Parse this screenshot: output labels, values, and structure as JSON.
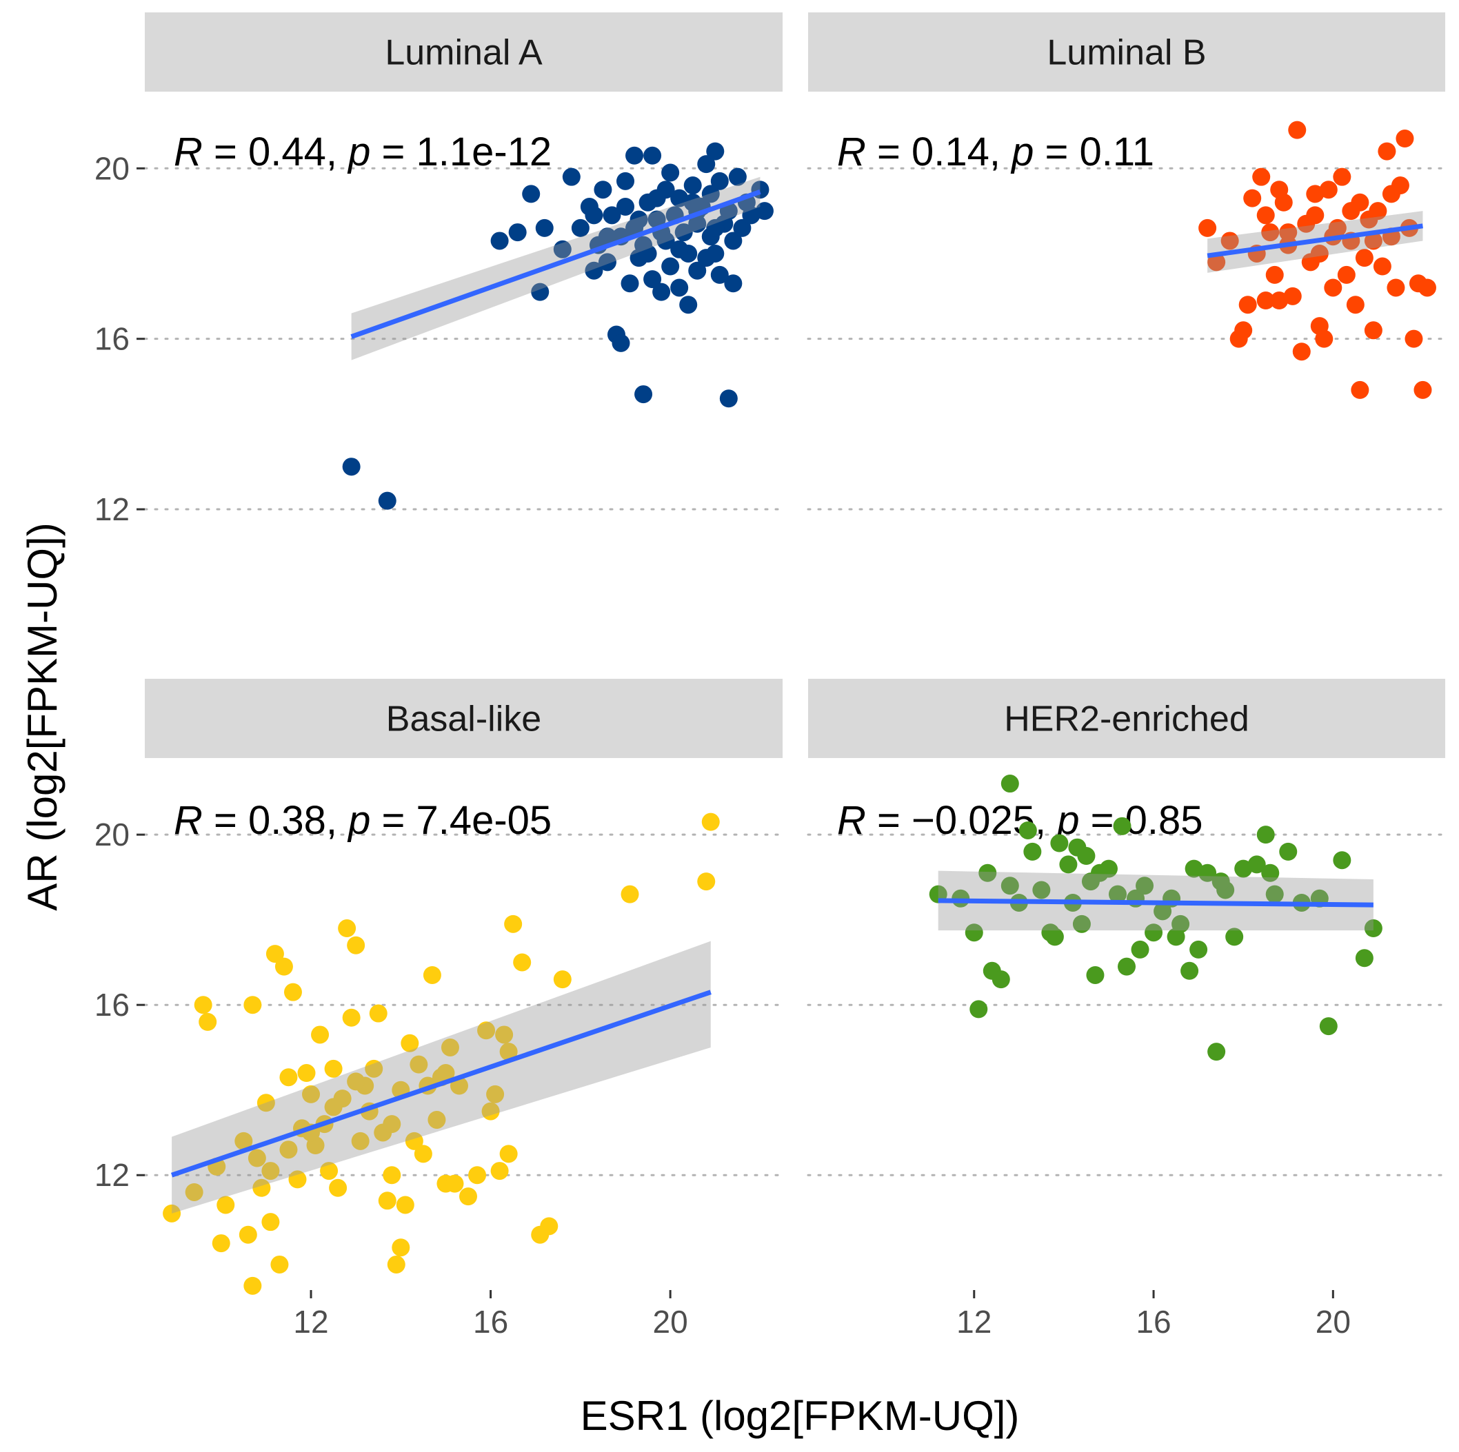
{
  "chart_data": {
    "type": "scatter",
    "xlabel": "ESR1 (log2[FPKM-UQ])",
    "ylabel": "AR (log2[FPKM-UQ])",
    "x_ticks": [
      12,
      16,
      20
    ],
    "y_ticks": [
      12,
      16,
      20
    ],
    "xlim": [
      8.3,
      22.5
    ],
    "ylim": [
      9.3,
      21.8
    ],
    "grid": "horizontal dotted",
    "fit_color": "#3366ff",
    "band_color": "#999999",
    "panels": [
      {
        "name": "Luminal A",
        "stat": {
          "r_symbol": "R",
          "r_text": " = 0.44, ",
          "p_symbol": "p",
          "p_text": " = 1.1e-12"
        },
        "color": "#003f87",
        "fit": {
          "x0": 12.9,
          "y0": 16.05,
          "x1": 22.0,
          "y1": 19.45
        },
        "band": {
          "lo0": 15.5,
          "hi0": 16.6,
          "lo1": 19.1,
          "hi1": 19.8
        },
        "points": [
          [
            12.9,
            13.0
          ],
          [
            13.7,
            12.2
          ],
          [
            16.2,
            18.3
          ],
          [
            16.6,
            18.5
          ],
          [
            16.9,
            19.4
          ],
          [
            17.1,
            17.1
          ],
          [
            17.2,
            18.6
          ],
          [
            17.6,
            18.1
          ],
          [
            17.8,
            19.8
          ],
          [
            18.0,
            18.6
          ],
          [
            18.2,
            19.1
          ],
          [
            18.3,
            17.6
          ],
          [
            18.4,
            18.2
          ],
          [
            18.5,
            19.5
          ],
          [
            18.6,
            17.8
          ],
          [
            18.7,
            18.9
          ],
          [
            18.8,
            16.1
          ],
          [
            18.9,
            15.9
          ],
          [
            18.9,
            18.4
          ],
          [
            19.0,
            19.7
          ],
          [
            19.1,
            17.3
          ],
          [
            19.2,
            18.6
          ],
          [
            19.2,
            20.3
          ],
          [
            19.3,
            17.9
          ],
          [
            19.4,
            14.7
          ],
          [
            19.4,
            18.2
          ],
          [
            19.5,
            19.2
          ],
          [
            19.6,
            20.3
          ],
          [
            19.6,
            17.4
          ],
          [
            19.7,
            18.8
          ],
          [
            19.8,
            17.1
          ],
          [
            19.9,
            19.5
          ],
          [
            19.9,
            18.3
          ],
          [
            20.0,
            17.7
          ],
          [
            20.0,
            19.9
          ],
          [
            20.1,
            18.9
          ],
          [
            20.2,
            17.2
          ],
          [
            20.2,
            19.3
          ],
          [
            20.3,
            18.5
          ],
          [
            20.4,
            16.8
          ],
          [
            20.4,
            18.0
          ],
          [
            20.5,
            19.6
          ],
          [
            20.6,
            17.6
          ],
          [
            20.6,
            18.7
          ],
          [
            20.7,
            19.1
          ],
          [
            20.8,
            17.9
          ],
          [
            20.8,
            20.1
          ],
          [
            20.9,
            18.4
          ],
          [
            20.9,
            19.4
          ],
          [
            21.0,
            18.0
          ],
          [
            21.0,
            20.4
          ],
          [
            21.1,
            17.5
          ],
          [
            21.1,
            19.7
          ],
          [
            21.2,
            18.7
          ],
          [
            21.3,
            14.6
          ],
          [
            21.3,
            19.0
          ],
          [
            21.4,
            17.3
          ],
          [
            21.4,
            18.3
          ],
          [
            21.5,
            19.8
          ],
          [
            21.6,
            18.6
          ],
          [
            21.7,
            19.2
          ],
          [
            21.8,
            18.9
          ],
          [
            22.0,
            19.5
          ],
          [
            22.1,
            19.0
          ],
          [
            19.0,
            19.1
          ],
          [
            19.5,
            18.0
          ],
          [
            18.6,
            18.4
          ],
          [
            20.6,
            19.0
          ],
          [
            21.0,
            18.6
          ],
          [
            19.8,
            18.5
          ],
          [
            20.2,
            18.1
          ],
          [
            19.3,
            18.8
          ],
          [
            20.5,
            19.2
          ],
          [
            18.3,
            18.9
          ],
          [
            19.7,
            19.3
          ]
        ]
      },
      {
        "name": "Luminal B",
        "stat": {
          "r_symbol": "R",
          "r_text": " = 0.14, ",
          "p_symbol": "p",
          "p_text": " = 0.11"
        },
        "color": "#ff4500",
        "fit": {
          "x0": 17.2,
          "y0": 17.95,
          "x1": 22.0,
          "y1": 18.65
        },
        "band": {
          "lo0": 17.55,
          "hi0": 18.35,
          "lo1": 18.3,
          "hi1": 19.0
        },
        "points": [
          [
            17.2,
            18.6
          ],
          [
            17.4,
            17.8
          ],
          [
            17.7,
            18.3
          ],
          [
            17.9,
            16.0
          ],
          [
            18.0,
            16.2
          ],
          [
            18.1,
            16.8
          ],
          [
            18.2,
            19.3
          ],
          [
            18.3,
            18.0
          ],
          [
            18.4,
            19.8
          ],
          [
            18.5,
            16.9
          ],
          [
            18.6,
            18.5
          ],
          [
            18.7,
            17.5
          ],
          [
            18.8,
            16.9
          ],
          [
            18.9,
            19.2
          ],
          [
            19.0,
            18.2
          ],
          [
            19.1,
            17.0
          ],
          [
            19.2,
            20.9
          ],
          [
            19.3,
            15.7
          ],
          [
            19.4,
            18.7
          ],
          [
            19.5,
            17.8
          ],
          [
            19.6,
            19.4
          ],
          [
            19.7,
            18.0
          ],
          [
            19.7,
            16.3
          ],
          [
            19.8,
            16.0
          ],
          [
            19.9,
            19.5
          ],
          [
            20.0,
            17.2
          ],
          [
            20.1,
            18.6
          ],
          [
            20.2,
            19.8
          ],
          [
            20.3,
            17.5
          ],
          [
            20.4,
            18.3
          ],
          [
            20.5,
            16.8
          ],
          [
            20.6,
            19.2
          ],
          [
            20.6,
            14.8
          ],
          [
            20.7,
            17.9
          ],
          [
            20.8,
            18.8
          ],
          [
            20.9,
            16.2
          ],
          [
            21.0,
            19.0
          ],
          [
            21.1,
            17.7
          ],
          [
            21.2,
            20.4
          ],
          [
            21.3,
            18.4
          ],
          [
            21.4,
            17.2
          ],
          [
            21.5,
            19.6
          ],
          [
            21.6,
            20.7
          ],
          [
            21.7,
            18.6
          ],
          [
            21.8,
            16.0
          ],
          [
            21.9,
            17.3
          ],
          [
            22.0,
            14.8
          ],
          [
            22.1,
            17.2
          ],
          [
            18.5,
            18.9
          ],
          [
            19.0,
            18.5
          ],
          [
            19.6,
            18.9
          ],
          [
            20.0,
            18.4
          ],
          [
            20.4,
            19.0
          ],
          [
            20.9,
            18.3
          ],
          [
            21.3,
            19.4
          ],
          [
            18.8,
            19.5
          ]
        ]
      },
      {
        "name": "Basal-like",
        "stat": {
          "r_symbol": "R",
          "r_text": " = 0.38, ",
          "p_symbol": "p",
          "p_text": " = 7.4e-05"
        },
        "color": "#ffcd0e",
        "fit": {
          "x0": 8.9,
          "y0": 12.0,
          "x1": 20.9,
          "y1": 16.3
        },
        "band": {
          "lo0": 11.1,
          "hi0": 12.9,
          "lo1": 15.0,
          "hi1": 17.5
        },
        "points": [
          [
            8.9,
            11.1
          ],
          [
            9.4,
            11.6
          ],
          [
            9.6,
            16.0
          ],
          [
            9.7,
            15.6
          ],
          [
            9.9,
            12.2
          ],
          [
            10.0,
            10.4
          ],
          [
            10.1,
            11.3
          ],
          [
            10.5,
            12.8
          ],
          [
            10.6,
            10.6
          ],
          [
            10.7,
            16.0
          ],
          [
            10.7,
            9.4
          ],
          [
            10.8,
            12.4
          ],
          [
            10.9,
            11.7
          ],
          [
            11.0,
            13.7
          ],
          [
            11.1,
            12.1
          ],
          [
            11.1,
            10.9
          ],
          [
            11.2,
            17.2
          ],
          [
            11.3,
            9.9
          ],
          [
            11.4,
            16.9
          ],
          [
            11.5,
            14.3
          ],
          [
            11.6,
            16.3
          ],
          [
            11.7,
            11.9
          ],
          [
            11.8,
            13.1
          ],
          [
            11.9,
            14.4
          ],
          [
            12.0,
            13.9
          ],
          [
            12.1,
            12.7
          ],
          [
            12.2,
            15.3
          ],
          [
            12.3,
            13.2
          ],
          [
            12.4,
            12.1
          ],
          [
            12.5,
            14.5
          ],
          [
            12.6,
            11.7
          ],
          [
            12.7,
            13.8
          ],
          [
            12.8,
            17.8
          ],
          [
            12.9,
            15.7
          ],
          [
            13.0,
            17.4
          ],
          [
            13.1,
            12.8
          ],
          [
            13.2,
            14.1
          ],
          [
            13.3,
            13.5
          ],
          [
            13.4,
            14.5
          ],
          [
            13.5,
            15.8
          ],
          [
            13.6,
            13.0
          ],
          [
            13.7,
            11.4
          ],
          [
            13.8,
            12.0
          ],
          [
            13.9,
            9.9
          ],
          [
            14.0,
            10.3
          ],
          [
            14.1,
            11.3
          ],
          [
            14.2,
            15.1
          ],
          [
            14.3,
            12.8
          ],
          [
            14.4,
            14.6
          ],
          [
            14.5,
            12.5
          ],
          [
            14.6,
            14.1
          ],
          [
            14.7,
            16.7
          ],
          [
            14.8,
            13.3
          ],
          [
            14.9,
            14.3
          ],
          [
            15.0,
            11.8
          ],
          [
            15.1,
            15.0
          ],
          [
            15.2,
            11.8
          ],
          [
            15.3,
            14.1
          ],
          [
            15.5,
            11.5
          ],
          [
            15.7,
            12.0
          ],
          [
            15.9,
            15.4
          ],
          [
            16.0,
            13.5
          ],
          [
            16.1,
            13.9
          ],
          [
            16.2,
            12.1
          ],
          [
            16.3,
            15.3
          ],
          [
            16.4,
            14.9
          ],
          [
            16.4,
            12.5
          ],
          [
            16.5,
            17.9
          ],
          [
            16.7,
            17.0
          ],
          [
            17.1,
            10.6
          ],
          [
            17.3,
            10.8
          ],
          [
            17.6,
            16.6
          ],
          [
            19.1,
            18.6
          ],
          [
            20.8,
            18.9
          ],
          [
            20.9,
            20.3
          ],
          [
            12.0,
            13.0
          ],
          [
            13.0,
            14.2
          ],
          [
            14.0,
            14.0
          ],
          [
            15.0,
            14.4
          ],
          [
            11.5,
            12.6
          ],
          [
            12.5,
            13.6
          ],
          [
            13.8,
            13.2
          ]
        ]
      },
      {
        "name": "HER2-enriched",
        "stat": {
          "r_symbol": "R",
          "r_text": " = −0.025, ",
          "p_symbol": "p",
          "p_text": " = 0.85"
        },
        "color": "#4a9a1e",
        "fit": {
          "x0": 11.2,
          "y0": 18.45,
          "x1": 20.9,
          "y1": 18.35
        },
        "band": {
          "lo0": 17.75,
          "hi0": 19.15,
          "lo1": 17.75,
          "hi1": 18.95
        },
        "points": [
          [
            11.2,
            18.6
          ],
          [
            11.7,
            18.5
          ],
          [
            12.0,
            17.7
          ],
          [
            12.1,
            15.9
          ],
          [
            12.3,
            19.1
          ],
          [
            12.4,
            16.8
          ],
          [
            12.6,
            16.6
          ],
          [
            12.8,
            21.2
          ],
          [
            13.0,
            18.4
          ],
          [
            13.2,
            20.1
          ],
          [
            13.3,
            19.6
          ],
          [
            13.5,
            18.7
          ],
          [
            13.7,
            17.7
          ],
          [
            13.8,
            17.6
          ],
          [
            13.9,
            19.8
          ],
          [
            14.1,
            19.3
          ],
          [
            14.2,
            18.4
          ],
          [
            14.3,
            19.7
          ],
          [
            14.5,
            19.5
          ],
          [
            14.6,
            18.9
          ],
          [
            14.7,
            16.7
          ],
          [
            14.8,
            19.1
          ],
          [
            15.0,
            19.2
          ],
          [
            15.2,
            18.6
          ],
          [
            15.3,
            20.2
          ],
          [
            15.4,
            16.9
          ],
          [
            15.6,
            18.5
          ],
          [
            15.7,
            17.3
          ],
          [
            16.0,
            17.7
          ],
          [
            16.2,
            18.2
          ],
          [
            16.4,
            18.5
          ],
          [
            16.6,
            17.9
          ],
          [
            16.8,
            16.8
          ],
          [
            16.9,
            19.2
          ],
          [
            17.0,
            17.3
          ],
          [
            17.2,
            19.1
          ],
          [
            17.4,
            14.9
          ],
          [
            17.6,
            18.7
          ],
          [
            17.8,
            17.6
          ],
          [
            18.0,
            19.2
          ],
          [
            18.3,
            19.3
          ],
          [
            18.5,
            20.0
          ],
          [
            18.7,
            18.6
          ],
          [
            19.0,
            19.6
          ],
          [
            19.3,
            18.4
          ],
          [
            19.7,
            18.5
          ],
          [
            19.9,
            15.5
          ],
          [
            20.2,
            19.4
          ],
          [
            20.7,
            17.1
          ],
          [
            20.9,
            17.8
          ],
          [
            15.8,
            18.8
          ],
          [
            17.5,
            18.9
          ],
          [
            18.6,
            19.1
          ],
          [
            12.8,
            18.8
          ],
          [
            14.4,
            17.9
          ],
          [
            16.5,
            17.6
          ]
        ]
      }
    ]
  }
}
